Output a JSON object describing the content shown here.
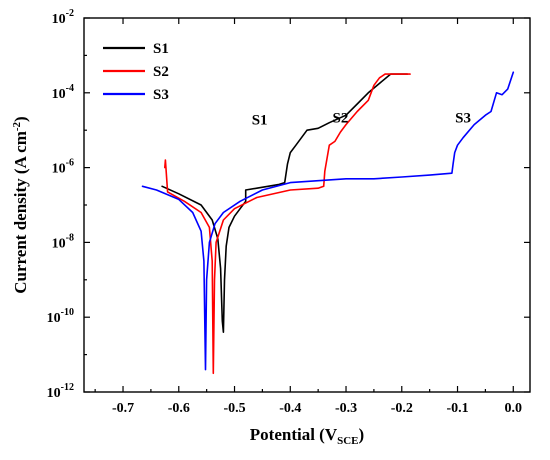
{
  "chart_data": {
    "type": "line",
    "title": "",
    "xlabel": "Potential (V",
    "xlabel_sub": "SCE",
    "xlabel_close": ")",
    "ylabel": "Current density (A cm",
    "ylabel_sup": "-2",
    "ylabel_close": ")",
    "xlim": [
      -0.77,
      0.03
    ],
    "ylim_log10": [
      -12,
      -2
    ],
    "y_scale": "log",
    "grid": false,
    "legend_position": "top-left",
    "x_ticks": [
      -0.7,
      -0.6,
      -0.5,
      -0.4,
      -0.3,
      -0.2,
      -0.1,
      0.0
    ],
    "x_tick_labels": [
      "-0.7",
      "-0.6",
      "-0.5",
      "-0.4",
      "-0.3",
      "-0.2",
      "-0.1",
      "0.0"
    ],
    "y_ticks_log10": [
      -12,
      -10,
      -8,
      -6,
      -4,
      -2
    ],
    "y_tick_labels": [
      {
        "base": "10",
        "exp": "-12"
      },
      {
        "base": "10",
        "exp": "-10"
      },
      {
        "base": "10",
        "exp": "-8"
      },
      {
        "base": "10",
        "exp": "-6"
      },
      {
        "base": "10",
        "exp": "-4"
      },
      {
        "base": "10",
        "exp": "-2"
      }
    ],
    "series": [
      {
        "name": "S1",
        "color": "#000000",
        "annotation": "S1",
        "points_x_V": [
          -0.63,
          -0.6,
          -0.56,
          -0.54,
          -0.53,
          -0.525,
          -0.522,
          -0.52,
          -0.518,
          -0.515,
          -0.51,
          -0.5,
          -0.49,
          -0.48,
          -0.48,
          -0.46,
          -0.44,
          -0.42,
          -0.41,
          -0.405,
          -0.4,
          -0.39,
          -0.37,
          -0.35,
          -0.33,
          -0.3,
          -0.28,
          -0.26,
          -0.24,
          -0.22,
          -0.2,
          -0.19
        ],
        "points_log_current": [
          -6.5,
          -6.7,
          -7.0,
          -7.4,
          -7.9,
          -8.7,
          -10.1,
          -10.4,
          -9.0,
          -8.1,
          -7.6,
          -7.3,
          -7.1,
          -6.9,
          -6.6,
          -6.55,
          -6.5,
          -6.45,
          -6.4,
          -5.9,
          -5.6,
          -5.4,
          -5.0,
          -4.95,
          -4.8,
          -4.6,
          -4.3,
          -4.0,
          -3.75,
          -3.5,
          -3.5,
          -3.5
        ]
      },
      {
        "name": "S2",
        "color": "#ff0000",
        "annotation": "S2",
        "points_x_V": [
          -0.625,
          -0.624,
          -0.62,
          -0.59,
          -0.56,
          -0.545,
          -0.54,
          -0.538,
          -0.536,
          -0.533,
          -0.52,
          -0.5,
          -0.46,
          -0.4,
          -0.35,
          -0.34,
          -0.338,
          -0.33,
          -0.32,
          -0.31,
          -0.3,
          -0.28,
          -0.26,
          -0.25,
          -0.24,
          -0.23,
          -0.22,
          -0.21,
          -0.2,
          -0.185
        ],
        "points_log_current": [
          -6.0,
          -5.8,
          -6.65,
          -6.9,
          -7.2,
          -7.6,
          -8.5,
          -11.5,
          -9.0,
          -8.0,
          -7.4,
          -7.1,
          -6.8,
          -6.6,
          -6.55,
          -6.5,
          -6.1,
          -5.4,
          -5.3,
          -5.05,
          -4.85,
          -4.5,
          -4.2,
          -3.8,
          -3.6,
          -3.5,
          -3.5,
          -3.5,
          -3.5,
          -3.5
        ]
      },
      {
        "name": "S3",
        "color": "#0000ff",
        "annotation": "S3",
        "points_x_V": [
          -0.665,
          -0.64,
          -0.6,
          -0.575,
          -0.56,
          -0.555,
          -0.552,
          -0.55,
          -0.545,
          -0.535,
          -0.52,
          -0.49,
          -0.45,
          -0.4,
          -0.35,
          -0.3,
          -0.25,
          -0.2,
          -0.15,
          -0.11,
          -0.108,
          -0.105,
          -0.1,
          -0.09,
          -0.07,
          -0.05,
          -0.04,
          -0.03,
          -0.02,
          -0.01,
          0.0
        ],
        "points_log_current": [
          -6.5,
          -6.6,
          -6.85,
          -7.2,
          -7.7,
          -8.5,
          -11.4,
          -9.0,
          -8.0,
          -7.5,
          -7.2,
          -6.9,
          -6.6,
          -6.4,
          -6.35,
          -6.3,
          -6.3,
          -6.25,
          -6.2,
          -6.15,
          -5.9,
          -5.6,
          -5.4,
          -5.2,
          -4.85,
          -4.6,
          -4.5,
          -4.0,
          -4.05,
          -3.9,
          -3.45
        ]
      }
    ]
  }
}
